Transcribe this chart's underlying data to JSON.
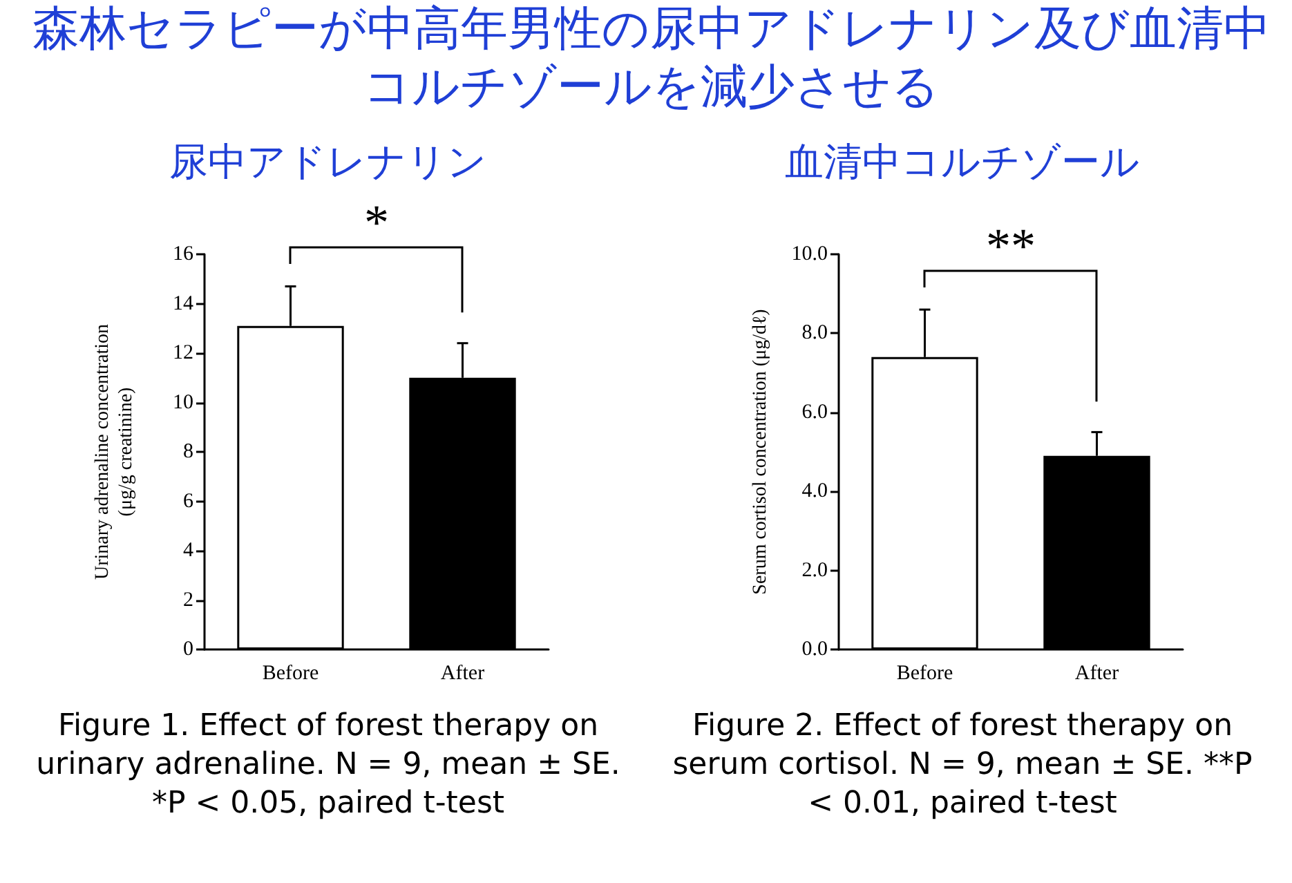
{
  "chart_data": [
    {
      "type": "other",
      "title": "森林セラピーが中高年男性の尿中アドレナリン及び血清中コルチゾールを減少させる"
    },
    {
      "type": "bar",
      "title": "尿中アドレナリン",
      "ylabel": "Urinary adrenaline concentration\n(μg/g creatinine)",
      "categories": [
        "Before",
        "After"
      ],
      "values": [
        13.1,
        11.0
      ],
      "colors": [
        "#ffffff",
        "#000000"
      ],
      "errors": [
        [
          13.1,
          14.7
        ],
        [
          11.0,
          12.4
        ]
      ],
      "ylim": [
        0,
        16
      ],
      "yticks": [
        0,
        2,
        4,
        6,
        8,
        10,
        12,
        14,
        16
      ],
      "annotations": [
        "*",
        "Figure 1. Effect of forest therapy on urinary adrenaline. N = 9, mean ± SE. *P < 0.05, paired t-test"
      ]
    },
    {
      "type": "bar",
      "title": "血清中コルチゾール",
      "ylabel": "Serum cortisol concentration (μg/dℓ)",
      "categories": [
        "Before",
        "After"
      ],
      "values": [
        7.4,
        4.9
      ],
      "colors": [
        "#ffffff",
        "#000000"
      ],
      "errors": [
        [
          7.4,
          8.6
        ],
        [
          4.9,
          5.5
        ]
      ],
      "ylim": [
        0,
        10
      ],
      "yticks": [
        {
          "value": 0,
          "label": "0.0"
        },
        {
          "value": 2,
          "label": "2.0"
        },
        {
          "value": 4,
          "label": "4.0"
        },
        {
          "value": 6,
          "label": "6.0"
        },
        {
          "value": 8,
          "label": "8.0"
        },
        {
          "value": 10,
          "label": "10.0"
        }
      ],
      "annotations": [
        "**",
        "Figure 2. Effect of forest therapy on serum cortisol. N = 9, mean ± SE. **P < 0.01, paired t-test"
      ]
    }
  ]
}
